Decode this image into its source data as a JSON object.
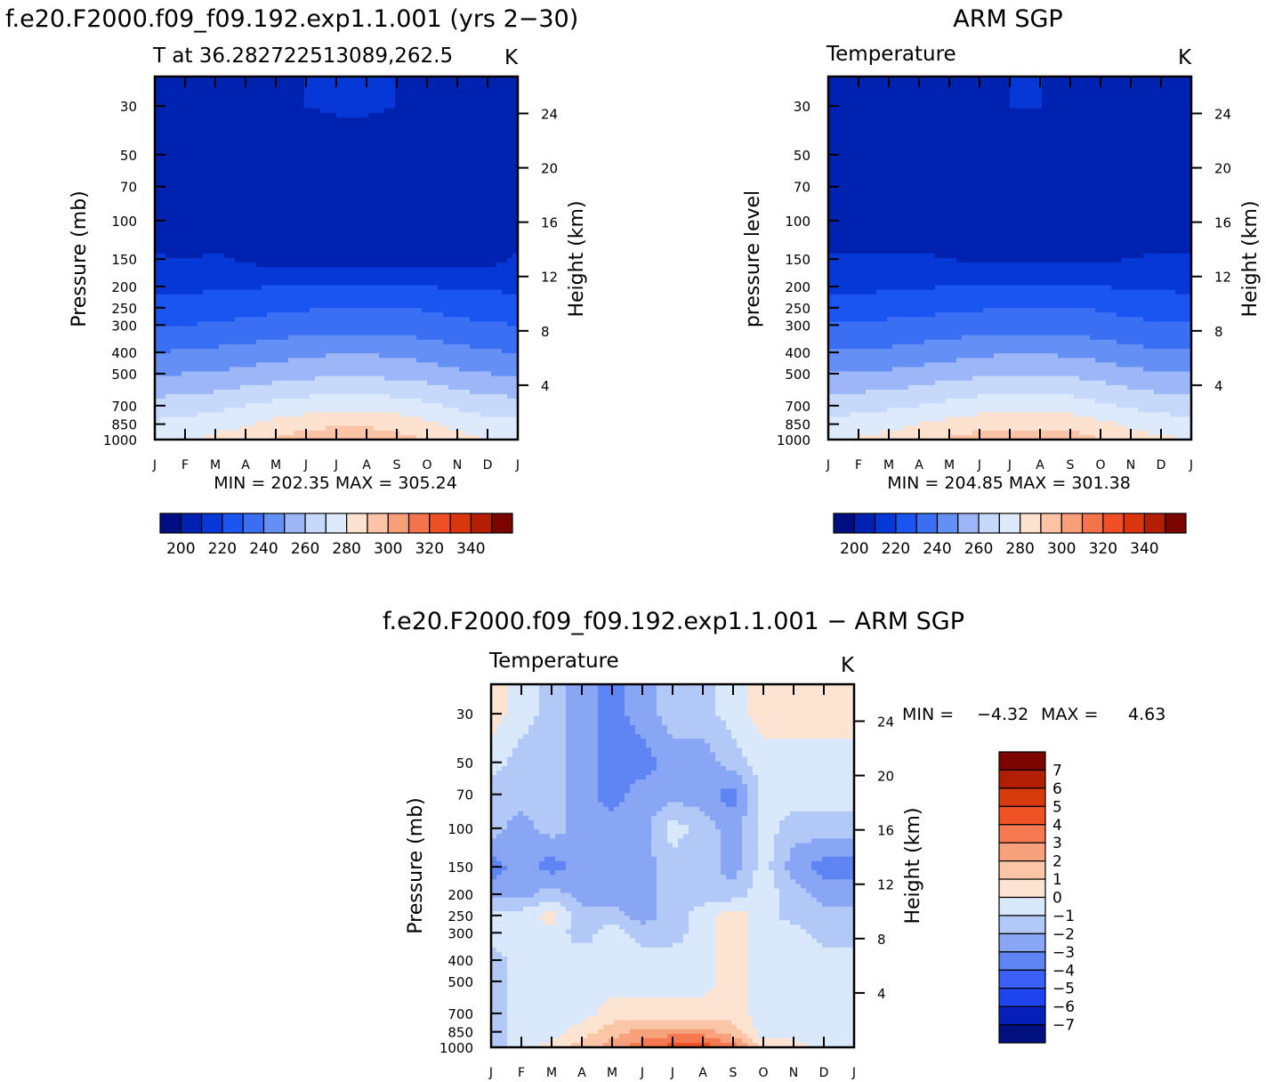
{
  "months": [
    "J",
    "F",
    "M",
    "A",
    "M",
    "J",
    "J",
    "A",
    "S",
    "O",
    "N",
    "D",
    "J"
  ],
  "pressure_ticks": [
    30,
    50,
    70,
    100,
    150,
    200,
    250,
    300,
    400,
    500,
    700,
    850,
    1000
  ],
  "height_ticks": [
    4,
    8,
    12,
    16,
    20,
    24
  ],
  "temp_levels": [
    200,
    210,
    220,
    230,
    240,
    250,
    260,
    270,
    280,
    290,
    300,
    310,
    320,
    330,
    340
  ],
  "temp_colors": [
    "#000e83",
    "#0022b1",
    "#0638d8",
    "#1a55f2",
    "#3a6ff3",
    "#6490f6",
    "#9cb6f7",
    "#c7d9fa",
    "#ddeafc",
    "#fde3cf",
    "#fcc3a6",
    "#f89e78",
    "#f4734c",
    "#f04f26",
    "#db3510",
    "#b31e05",
    "#7d0500"
  ],
  "temp_cb_labels": [
    "200",
    "220",
    "240",
    "260",
    "280",
    "300",
    "320",
    "340"
  ],
  "diff_levels": [
    -7,
    -6,
    -5,
    -4,
    -3,
    -2,
    -1,
    0,
    1,
    2,
    3,
    4,
    5,
    6,
    7
  ],
  "diff_cb_labels": [
    "7",
    "6",
    "5",
    "4",
    "3",
    "2",
    "1",
    "0",
    "−1",
    "−2",
    "−3",
    "−4",
    "−5",
    "−6",
    "−7"
  ],
  "charts": {
    "model": {
      "main_title": "f.e20.F2000.f09_f09.192.exp1.1.001 (yrs 2−30)",
      "left_label": "T at 36.282722513089,262.5",
      "unit": "K",
      "ylabel": "Pressure (mb)",
      "y2label": "Height (km)",
      "minmax": "MIN = 202.35 MAX = 305.24"
    },
    "obs": {
      "main_title": "ARM SGP",
      "left_label": "Temperature",
      "unit": "K",
      "ylabel": "pressure level",
      "y2label": "Height (km)",
      "minmax": "MIN = 204.85 MAX = 301.38"
    },
    "diff": {
      "main_title": "f.e20.F2000.f09_f09.192.exp1.1.001 − ARM SGP",
      "left_label": "Temperature",
      "unit": "K",
      "ylabel": "Pressure (mb)",
      "y2label": "Height (km)",
      "min_label": "MIN =",
      "min_value": "−4.32",
      "max_label": "MAX =",
      "max_value": "4.63"
    }
  },
  "chart_data": [
    {
      "type": "heatmap",
      "title": "f.e20.F2000.f09_f09.192.exp1.1.001 (yrs 2−30)",
      "xlabel": "",
      "ylabel": "Pressure (mb)",
      "x": [
        "J",
        "F",
        "M",
        "A",
        "M",
        "J",
        "J",
        "A",
        "S",
        "O",
        "N",
        "D",
        "J"
      ],
      "y": [
        30,
        50,
        70,
        100,
        150,
        200,
        250,
        300,
        400,
        500,
        700,
        850,
        1000
      ],
      "ylim": [
        1000,
        22
      ],
      "y_scale": "log",
      "approx_values": [
        [
          209,
          208,
          208,
          208,
          209,
          210,
          211,
          211,
          210,
          209,
          209,
          209,
          209
        ],
        [
          205,
          204,
          204,
          204,
          205,
          205,
          206,
          206,
          206,
          205,
          205,
          205,
          205
        ],
        [
          202,
          202,
          202,
          202,
          203,
          203,
          204,
          204,
          204,
          203,
          203,
          203,
          202
        ],
        [
          204,
          203,
          204,
          203,
          202,
          202,
          202,
          202,
          202,
          202,
          202,
          203,
          204
        ],
        [
          211,
          210,
          211,
          209,
          205,
          205,
          205,
          205,
          205,
          205,
          206,
          207,
          211
        ],
        [
          218,
          218,
          218,
          219,
          220,
          221,
          221,
          221,
          221,
          220,
          219,
          218,
          218
        ],
        [
          225,
          225,
          226,
          227,
          228,
          229,
          230,
          230,
          230,
          229,
          227,
          226,
          225
        ],
        [
          230,
          230,
          231,
          232,
          234,
          235,
          236,
          236,
          236,
          234,
          232,
          231,
          230
        ],
        [
          240,
          241,
          242,
          244,
          246,
          248,
          249,
          249,
          248,
          246,
          243,
          241,
          240
        ],
        [
          249,
          250,
          251,
          253,
          255,
          257,
          258,
          258,
          257,
          255,
          252,
          250,
          249
        ],
        [
          264,
          265,
          267,
          270,
          273,
          275,
          276,
          276,
          275,
          272,
          268,
          265,
          264
        ],
        [
          272,
          273,
          276,
          279,
          283,
          286,
          288,
          288,
          286,
          282,
          277,
          274,
          272
        ],
        [
          278,
          279,
          282,
          286,
          291,
          296,
          299,
          298,
          295,
          289,
          284,
          280,
          278
        ]
      ],
      "unit": "K",
      "min": 202.35,
      "max": 305.24,
      "colorbar": [
        200,
        210,
        220,
        230,
        240,
        250,
        260,
        270,
        280,
        290,
        300,
        310,
        320,
        330,
        340
      ]
    },
    {
      "type": "heatmap",
      "title": "ARM SGP",
      "xlabel": "",
      "ylabel": "pressure level",
      "x": [
        "J",
        "F",
        "M",
        "A",
        "M",
        "J",
        "J",
        "A",
        "S",
        "O",
        "N",
        "D",
        "J"
      ],
      "y": [
        30,
        50,
        70,
        100,
        150,
        200,
        250,
        300,
        400,
        500,
        700,
        850,
        1000
      ],
      "ylim": [
        1000,
        22
      ],
      "y_scale": "log",
      "approx_values": [
        [
          210,
          209,
          208,
          208,
          208,
          209,
          210,
          210,
          209,
          209,
          209,
          209,
          210
        ],
        [
          206,
          205,
          205,
          205,
          206,
          206,
          206,
          206,
          206,
          206,
          205,
          205,
          205
        ],
        [
          204,
          203,
          203,
          204,
          204,
          204,
          204,
          204,
          204,
          204,
          204,
          203,
          202
        ],
        [
          206,
          206,
          206,
          206,
          205,
          204,
          204,
          204,
          204,
          204,
          205,
          205,
          206
        ],
        [
          211,
          211,
          211,
          211,
          210,
          208,
          208,
          208,
          208,
          208,
          210,
          211,
          211
        ],
        [
          218,
          218,
          218,
          219,
          220,
          221,
          221,
          221,
          221,
          220,
          219,
          218,
          218
        ],
        [
          225,
          225,
          226,
          227,
          228,
          229,
          230,
          230,
          230,
          229,
          227,
          226,
          225
        ],
        [
          231,
          231,
          232,
          233,
          234,
          235,
          236,
          236,
          236,
          234,
          232,
          231,
          231
        ],
        [
          241,
          241,
          242,
          244,
          246,
          248,
          249,
          249,
          248,
          246,
          243,
          241,
          241
        ],
        [
          250,
          251,
          252,
          254,
          256,
          258,
          259,
          259,
          258,
          256,
          253,
          251,
          250
        ],
        [
          265,
          266,
          268,
          270,
          273,
          275,
          276,
          276,
          275,
          272,
          268,
          266,
          265
        ],
        [
          274,
          275,
          277,
          280,
          283,
          286,
          287,
          287,
          286,
          282,
          278,
          275,
          274
        ],
        [
          280,
          281,
          283,
          287,
          291,
          295,
          297,
          297,
          295,
          290,
          285,
          282,
          280
        ]
      ],
      "unit": "K",
      "min": 204.85,
      "max": 301.38,
      "colorbar": [
        200,
        210,
        220,
        230,
        240,
        250,
        260,
        270,
        280,
        290,
        300,
        310,
        320,
        330,
        340
      ]
    },
    {
      "type": "heatmap",
      "title": "f.e20.F2000.f09_f09.192.exp1.1.001 − ARM SGP",
      "xlabel": "",
      "ylabel": "Pressure (mb)",
      "x": [
        "J",
        "F",
        "M",
        "A",
        "M",
        "J",
        "J",
        "A",
        "S",
        "O",
        "N",
        "D",
        "J"
      ],
      "y": [
        30,
        50,
        70,
        100,
        150,
        200,
        250,
        300,
        400,
        500,
        700,
        850,
        1000
      ],
      "ylim": [
        1000,
        22
      ],
      "y_scale": "log",
      "approx_values": [
        [
          0.5,
          -0.5,
          -1.5,
          -2.5,
          -3.5,
          -2.5,
          -1.5,
          -1.5,
          -0.5,
          0.5,
          0.5,
          0.5,
          0.5
        ],
        [
          -0.5,
          -1.5,
          -1.5,
          -2.5,
          -3.5,
          -3.5,
          -2.5,
          -2.5,
          -1.5,
          -0.5,
          -0.5,
          -0.5,
          -0.5
        ],
        [
          -1.5,
          -1.5,
          -1.5,
          -2.5,
          -3.5,
          -2.5,
          -2.5,
          -2.5,
          -3.5,
          -0.5,
          -0.5,
          -0.5,
          -0.5
        ],
        [
          -1.5,
          -2.5,
          -1.5,
          -2.5,
          -2.5,
          -2.5,
          -0.5,
          -1.5,
          -2.5,
          -0.5,
          -1.5,
          -1.5,
          -1.5
        ],
        [
          -3.5,
          -2.5,
          -3.5,
          -2.5,
          -2.5,
          -2.5,
          -1.5,
          -1.5,
          -2.5,
          -0.5,
          -2.5,
          -3.5,
          -3.5
        ],
        [
          -2.5,
          -2.5,
          -1.5,
          -2.5,
          -2.5,
          -2.5,
          -1.5,
          -1.5,
          -1.5,
          -0.5,
          -1.5,
          -2.5,
          -2.5
        ],
        [
          -0.5,
          -0.5,
          0.5,
          -1.5,
          -1.5,
          -2.5,
          -1.5,
          -0.5,
          0.5,
          -0.5,
          -1.5,
          -1.5,
          -1.5
        ],
        [
          -0.5,
          -0.5,
          -0.5,
          -1.5,
          -0.5,
          -1.5,
          -1.5,
          -0.5,
          0.5,
          -0.5,
          -0.5,
          -1.5,
          -1.5
        ],
        [
          -1.5,
          -0.5,
          -0.5,
          -0.5,
          -0.5,
          -0.5,
          -0.5,
          -0.5,
          0.5,
          -0.5,
          -0.5,
          -0.5,
          -0.5
        ],
        [
          -1.5,
          -0.5,
          -0.5,
          -0.5,
          -0.5,
          -0.5,
          -0.5,
          -0.5,
          0.5,
          -0.5,
          -0.5,
          -0.5,
          -0.5
        ],
        [
          -1.5,
          -0.5,
          -0.5,
          -0.5,
          0.5,
          0.5,
          0.5,
          0.5,
          0.5,
          -0.5,
          -0.5,
          -0.5,
          -0.5
        ],
        [
          -1.5,
          -0.5,
          -0.5,
          0.5,
          1.5,
          2.5,
          2.5,
          2.5,
          1.5,
          -0.5,
          -0.5,
          -0.5,
          -0.5
        ],
        [
          -1.5,
          -0.5,
          0.5,
          1.5,
          2.5,
          3.5,
          4.5,
          4.5,
          3.5,
          0.5,
          0.5,
          -0.5,
          -0.5
        ]
      ],
      "unit": "K",
      "min": -4.32,
      "max": 4.63,
      "colorbar": [
        -7,
        -6,
        -5,
        -4,
        -3,
        -2,
        -1,
        0,
        1,
        2,
        3,
        4,
        5,
        6,
        7
      ]
    }
  ]
}
